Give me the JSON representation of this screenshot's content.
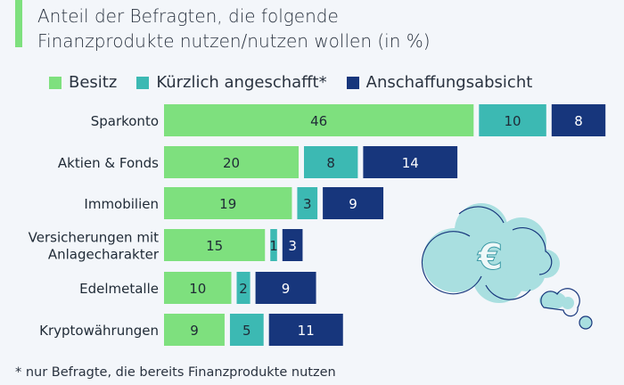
{
  "title": "Anteil der Befragten, die folgende Finanzprodukte nutzen/nutzen wollen (in %)",
  "title_lines": [
    "Anteil der Befragten, die folgende",
    "Finanzprodukte nutzen/nutzen wollen (in %)"
  ],
  "footnote": "* nur Befragte, die bereits Finanzprodukte nutzen",
  "colors": {
    "Besitz": "#7ee07e",
    "Kürzlich angeschafft*": "#3cb9b3",
    "Anschaffungsgabsicht": "#17367c",
    "background": "#f3f6fa"
  },
  "icon": "euro-thought-cloud-icon",
  "chart_data": {
    "type": "bar",
    "orientation": "horizontal",
    "stacked": true,
    "title": "Anteil der Befragten, die folgende Finanzprodukte nutzen/nutzen wollen (in %)",
    "legend_position": "top",
    "grid": false,
    "categories": [
      "Sparkonto",
      "Aktien & Fonds",
      "Immobilien",
      "Versicherungen mit Anlagecharakter",
      "Edelmetalle",
      "Kryptowährungen"
    ],
    "category_lines": [
      [
        "Sparkonto"
      ],
      [
        "Aktien & Fonds"
      ],
      [
        "Immobilien"
      ],
      [
        "Versicherungen mit",
        "Anlagecharakter"
      ],
      [
        "Edelmetalle"
      ],
      [
        "Kryptowährungen"
      ]
    ],
    "series": [
      {
        "name": "Besitz",
        "values": [
          46,
          20,
          19,
          15,
          10,
          9
        ]
      },
      {
        "name": "Kürzlich angeschafft*",
        "values": [
          10,
          8,
          3,
          1,
          2,
          5
        ]
      },
      {
        "name": "Anschaffungsabsicht",
        "values": [
          8,
          14,
          9,
          3,
          9,
          11
        ]
      }
    ]
  }
}
